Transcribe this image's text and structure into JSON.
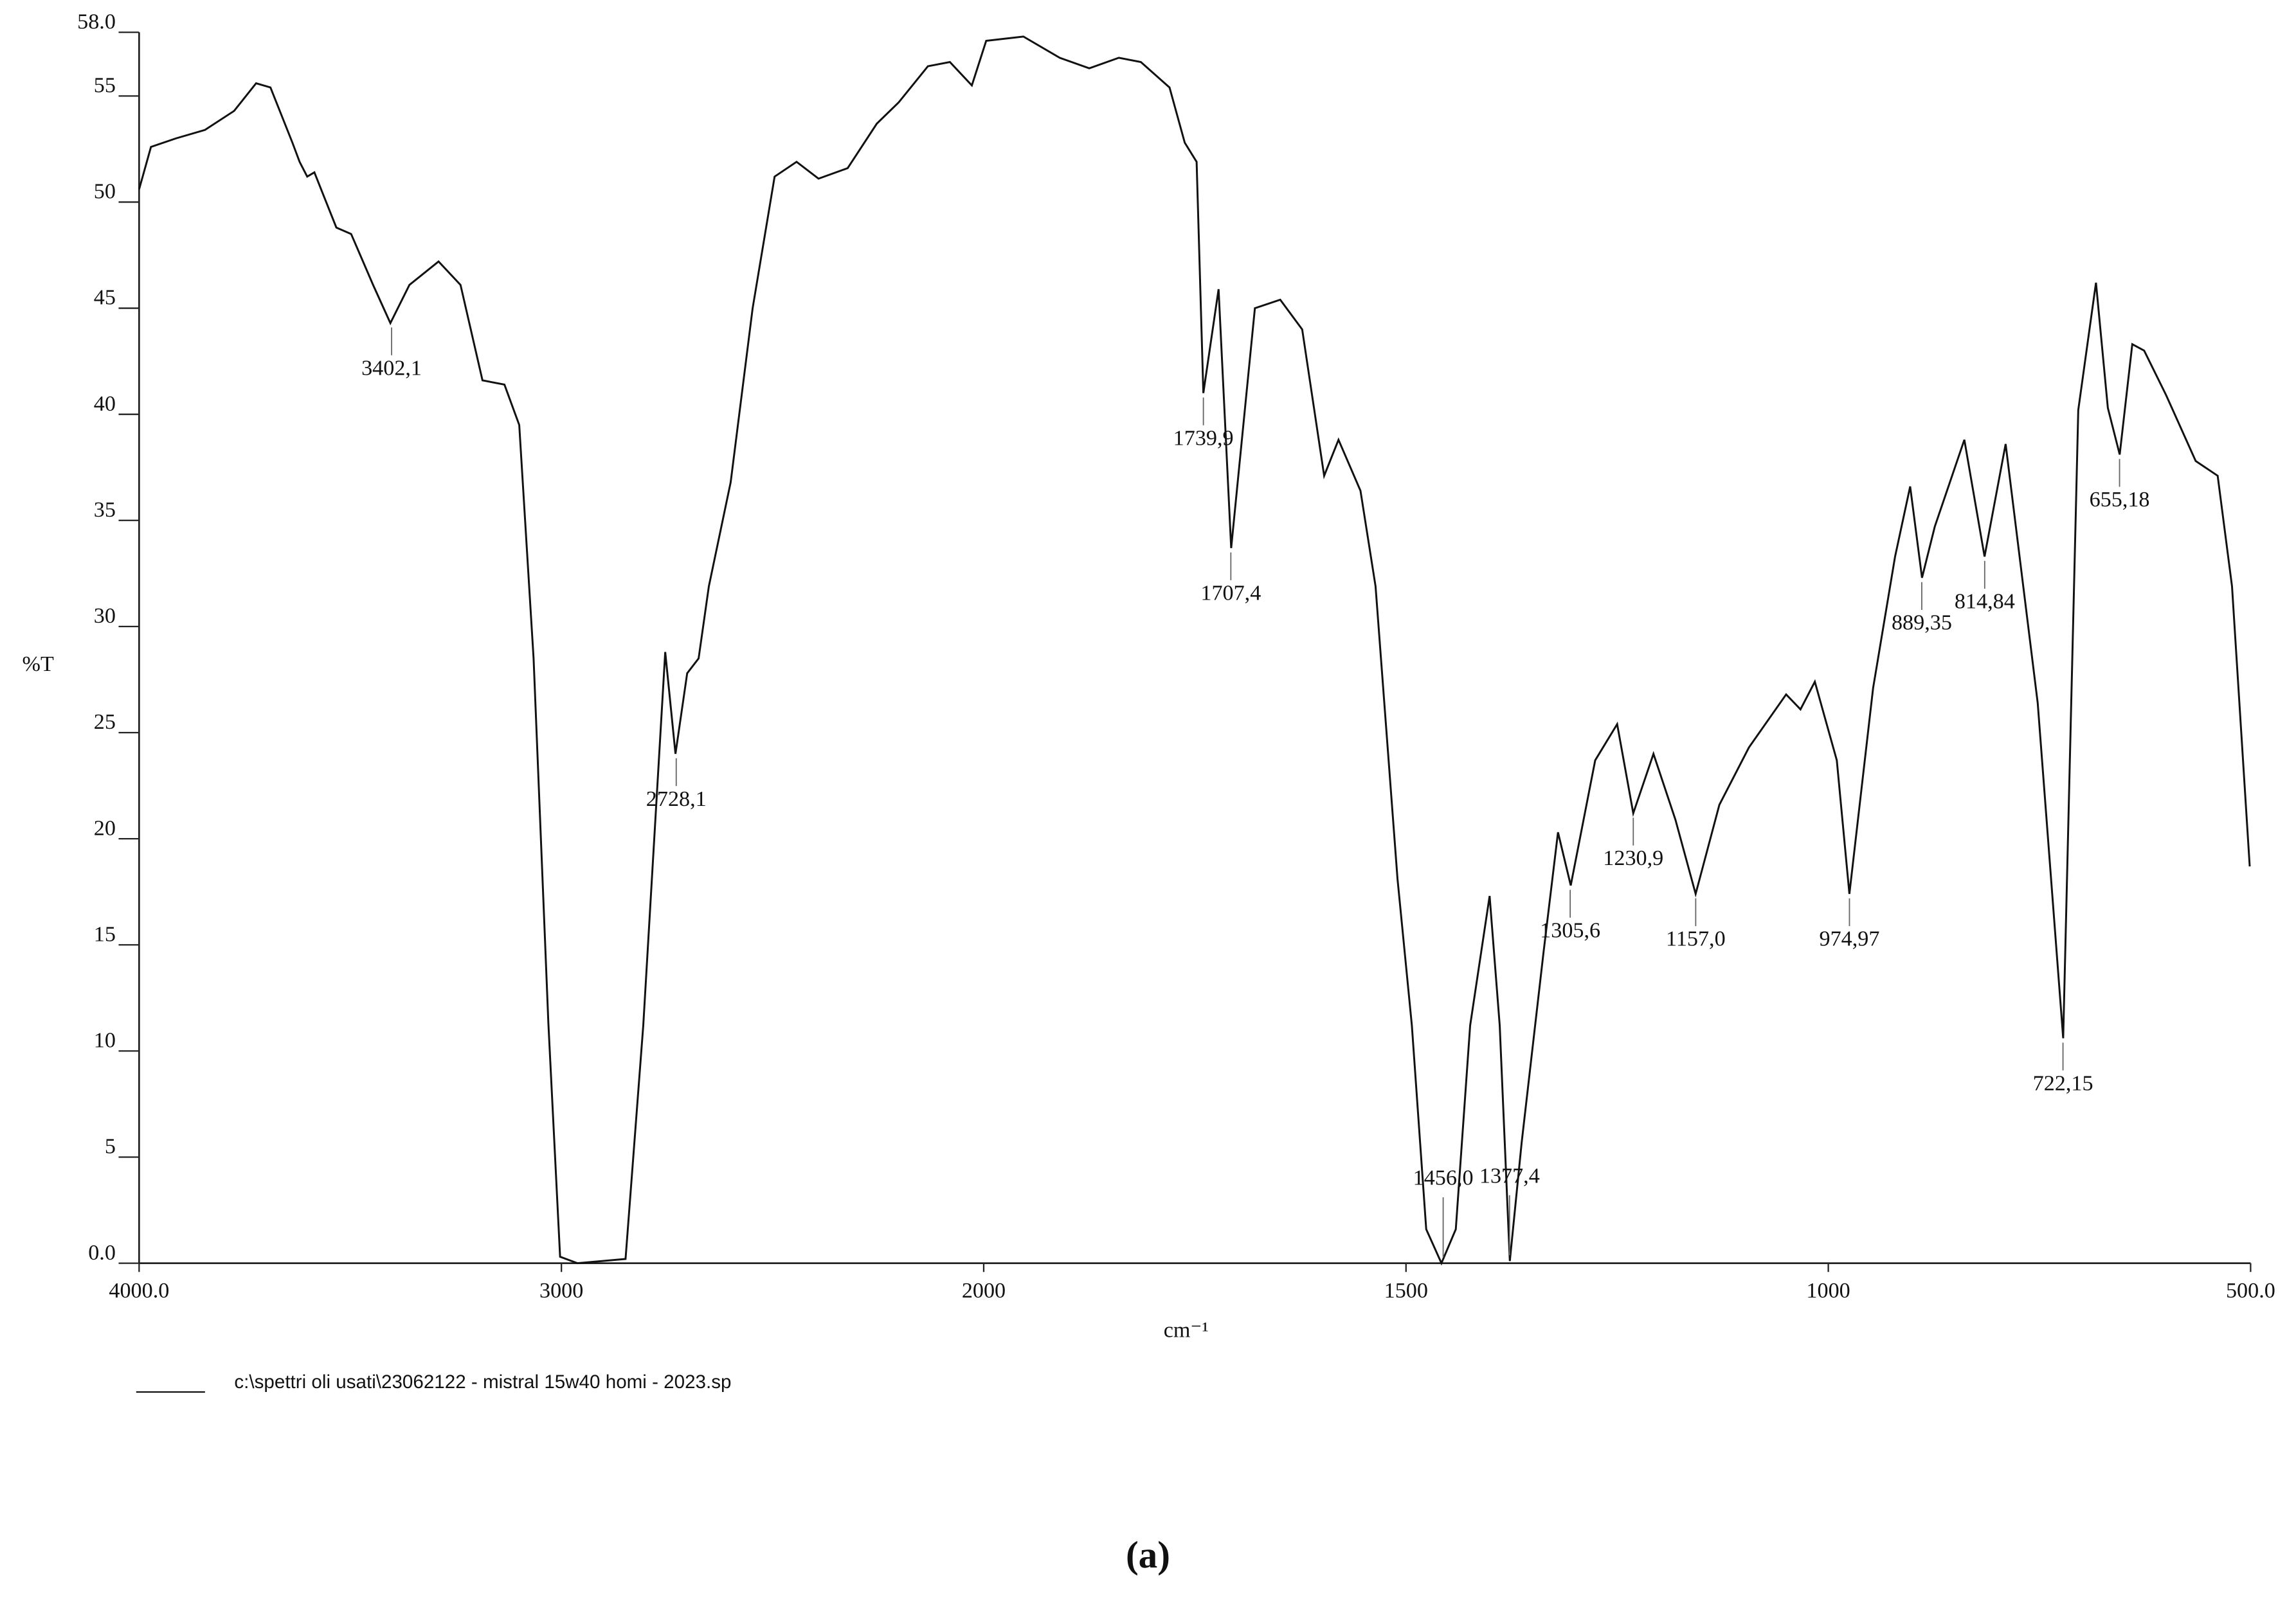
{
  "chart_data": {
    "type": "line",
    "x_label": "cm⁻¹",
    "y_label": "%T",
    "caption": "(a)",
    "xlim": [
      4000,
      500
    ],
    "ylim": [
      0,
      58
    ],
    "xticks": [
      {
        "value": 4000,
        "label": "4000.0"
      },
      3000,
      2000,
      1500,
      1000,
      {
        "value": 500,
        "label": "500.0"
      }
    ],
    "yticks": [
      {
        "value": 0,
        "label": "0.0"
      },
      5,
      10,
      15,
      20,
      25,
      30,
      35,
      40,
      45,
      50,
      55,
      {
        "value": 58,
        "label": "58.0"
      }
    ],
    "x": [
      4000,
      3972,
      3913,
      3844,
      3775,
      3723,
      3689,
      3637,
      3620,
      3602,
      3585,
      3561,
      3533,
      3498,
      3446,
      3405,
      3360,
      3291,
      3239,
      3187,
      3135,
      3100,
      3066,
      3031,
      3003,
      2962,
      2848,
      2806,
      2754,
      2730,
      2702,
      2675,
      2651,
      2599,
      2547,
      2495,
      2443,
      2391,
      2322,
      2253,
      2201,
      2132,
      2080,
      2028,
      1997,
      1953,
      1910,
      1875,
      1840,
      1814,
      1780,
      1762,
      1748,
      1740,
      1722,
      1707,
      1679,
      1649,
      1623,
      1597,
      1580,
      1554,
      1536,
      1510,
      1493,
      1476,
      1458,
      1441,
      1424,
      1401,
      1389,
      1377,
      1363,
      1337,
      1320,
      1305,
      1276,
      1250,
      1231,
      1207,
      1181,
      1157,
      1129,
      1094,
      1050,
      1033,
      1016,
      990,
      975,
      947,
      921,
      903,
      889,
      874,
      839,
      815,
      790,
      752,
      722,
      704,
      683,
      669,
      655,
      640,
      626,
      600,
      565,
      539,
      522,
      501
    ],
    "series": [
      {
        "name": "c:\\spettri oli usati\\23062122 - mistral 15w40 homi - 2023.sp",
        "color": "#111111",
        "values": [
          50.6,
          52.6,
          53,
          53.4,
          54.3,
          55.6,
          55.4,
          52.8,
          51.9,
          51.2,
          51.4,
          50.2,
          48.8,
          48.5,
          46.1,
          44.3,
          46.1,
          47.2,
          46.1,
          41.6,
          41.4,
          39.5,
          28.5,
          11.3,
          0.3,
          0,
          0.2,
          11.2,
          28.8,
          24,
          27.8,
          28.5,
          31.9,
          36.8,
          45,
          51.2,
          51.9,
          51.1,
          51.6,
          53.7,
          54.7,
          56.4,
          56.6,
          55.5,
          57.6,
          57.8,
          56.8,
          56.3,
          56.8,
          56.6,
          55.4,
          52.8,
          51.9,
          41,
          45.9,
          33.7,
          45,
          45.4,
          44,
          37.1,
          38.8,
          36.4,
          31.9,
          18.1,
          11.2,
          1.6,
          0,
          1.6,
          11.2,
          17.3,
          11.2,
          0.1,
          5.7,
          14.7,
          20.3,
          17.8,
          23.7,
          25.4,
          21.2,
          24,
          20.9,
          17.4,
          21.6,
          24.3,
          26.8,
          26.1,
          27.4,
          23.7,
          17.4,
          27.1,
          33.3,
          36.6,
          32.3,
          34.7,
          38.8,
          33.3,
          38.6,
          26.4,
          10.6,
          40.2,
          46.2,
          40.3,
          38.1,
          43.3,
          43,
          40.9,
          37.8,
          37.1,
          31.9,
          18.7
        ]
      }
    ],
    "annotations": [
      {
        "x": 3402.1,
        "y": 44.3,
        "label": "3402,1"
      },
      {
        "x": 2728.1,
        "y": 24,
        "label": "2728,1"
      },
      {
        "x": 1739.9,
        "y": 41,
        "label": "1739,9"
      },
      {
        "x": 1707.4,
        "y": 33.7,
        "label": "1707,4"
      },
      {
        "x": 1456.0,
        "y": 0,
        "label": "1456,0"
      },
      {
        "x": 1377.4,
        "y": 0.1,
        "label": "1377,4"
      },
      {
        "x": 1305.6,
        "y": 17.8,
        "label": "1305,6"
      },
      {
        "x": 1230.9,
        "y": 21.2,
        "label": "1230,9"
      },
      {
        "x": 1157.0,
        "y": 17.4,
        "label": "1157,0"
      },
      {
        "x": 974.97,
        "y": 17.4,
        "label": "974,97"
      },
      {
        "x": 889.35,
        "y": 32.3,
        "label": "889,35"
      },
      {
        "x": 814.84,
        "y": 33.3,
        "label": "814,84"
      },
      {
        "x": 722.15,
        "y": 10.6,
        "label": "722,15"
      },
      {
        "x": 655.18,
        "y": 38.1,
        "label": "655,18"
      }
    ]
  }
}
